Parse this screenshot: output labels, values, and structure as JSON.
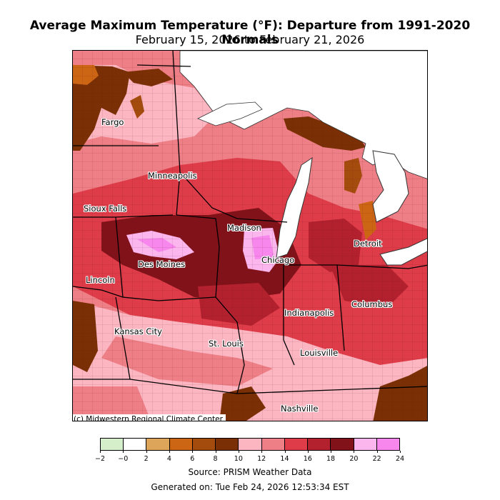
{
  "header": {
    "title": "Average Maximum Temperature (°F): Departure from 1991-2020 Normals",
    "subtitle": "February 15, 2026 to February 21, 2026"
  },
  "map": {
    "credit": "(c) Midwestern Regional Climate Center",
    "cities": [
      {
        "name": "Fargo"
      },
      {
        "name": "Minneapolis"
      },
      {
        "name": "Sioux Falls"
      },
      {
        "name": "Madison"
      },
      {
        "name": "Detroit"
      },
      {
        "name": "Chicago"
      },
      {
        "name": "Des Moines"
      },
      {
        "name": "Lincoln"
      },
      {
        "name": "Columbus"
      },
      {
        "name": "Indianapolis"
      },
      {
        "name": "Kansas City"
      },
      {
        "name": "St. Louis"
      },
      {
        "name": "Louisville"
      },
      {
        "name": "Nashville"
      }
    ]
  },
  "legend": {
    "colors": [
      "#d4efc9",
      "#ffffff",
      "#dca55a",
      "#cc6614",
      "#a34c0e",
      "#7a3004",
      "#fcb6c2",
      "#ee7f86",
      "#de3c48",
      "#b3212e",
      "#82121a",
      "#fbb6ee",
      "#f787ec"
    ],
    "ticks": [
      "−2",
      "−0",
      "2",
      "4",
      "6",
      "8",
      "10",
      "12",
      "14",
      "16",
      "18",
      "20",
      "22",
      "24"
    ]
  },
  "footer": {
    "source": "Source: PRISM Weather Data",
    "generated": "Generated on: Tue Feb 24, 2026 12:53:34 EST"
  }
}
